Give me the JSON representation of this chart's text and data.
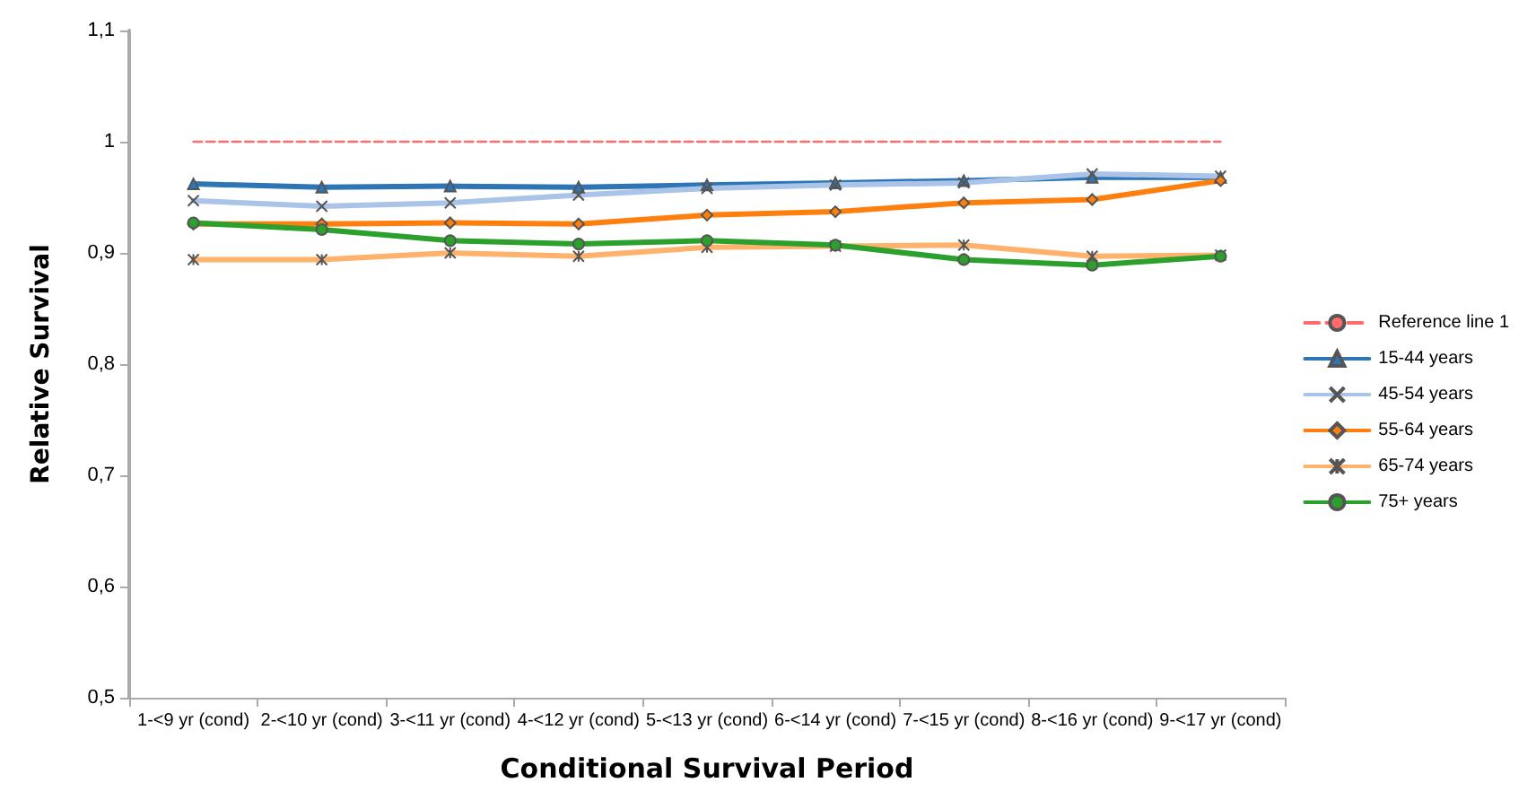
{
  "chart_data": {
    "type": "line",
    "xlabel": "Conditional Survival Period",
    "ylabel": "Relative Survival",
    "categories": [
      "1-<9 yr (cond)",
      "2-<10 yr (cond)",
      "3-<11 yr (cond)",
      "4-<12 yr (cond)",
      "5-<13 yr (cond)",
      "6-<14 yr (cond)",
      "7-<15 yr (cond)",
      "8-<16 yr (cond)",
      "9-<17 yr (cond)"
    ],
    "ylim": [
      0.5,
      1.1
    ],
    "yticks": [
      {
        "value": 0.5,
        "label": "0,5"
      },
      {
        "value": 0.6,
        "label": "0,6"
      },
      {
        "value": 0.7,
        "label": "0,7"
      },
      {
        "value": 0.8,
        "label": "0,8"
      },
      {
        "value": 0.9,
        "label": "0,9"
      },
      {
        "value": 1,
        "label": "1"
      },
      {
        "value": 1.1,
        "label": "1,1"
      }
    ],
    "grid": false,
    "legend": "right",
    "series": [
      {
        "name": "Reference line 1",
        "color": "#ff6b6b",
        "line_style": "dashed",
        "marker": "none",
        "values": [
          1,
          1,
          1,
          1,
          1,
          1,
          1,
          1,
          1
        ]
      },
      {
        "name": "15-44 years",
        "color": "#2e75b6",
        "marker": "triangle",
        "values": [
          0.962,
          0.959,
          0.96,
          0.959,
          0.961,
          0.963,
          0.965,
          0.968,
          0.968
        ]
      },
      {
        "name": "45-54 years",
        "color": "#a9c4e8",
        "marker": "cross",
        "values": [
          0.947,
          0.942,
          0.945,
          0.952,
          0.958,
          0.961,
          0.963,
          0.971,
          0.969
        ]
      },
      {
        "name": "55-64 years",
        "color": "#ff7f0e",
        "marker": "diamond",
        "values": [
          0.926,
          0.926,
          0.927,
          0.926,
          0.934,
          0.937,
          0.945,
          0.948,
          0.965
        ]
      },
      {
        "name": "65-74 years",
        "color": "#ffb26b",
        "marker": "star",
        "values": [
          0.894,
          0.894,
          0.9,
          0.897,
          0.905,
          0.906,
          0.907,
          0.897,
          0.898
        ]
      },
      {
        "name": "75+ years",
        "color": "#2ca02c",
        "marker": "circle",
        "values": [
          0.927,
          0.921,
          0.911,
          0.908,
          0.911,
          0.907,
          0.894,
          0.889,
          0.897
        ]
      }
    ]
  }
}
